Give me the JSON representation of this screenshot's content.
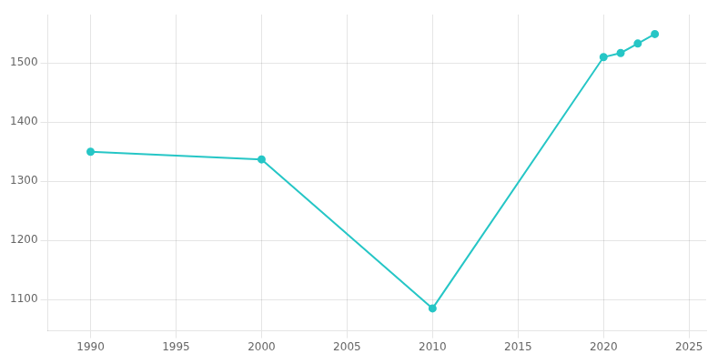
{
  "chart_data": {
    "type": "line",
    "x": [
      1990,
      2000,
      2010,
      2020,
      2021,
      2022,
      2023
    ],
    "values": [
      1350,
      1337,
      1085,
      1510,
      1517,
      1533,
      1549
    ],
    "color": "#26C6C6",
    "marker": "circle",
    "xlim": [
      1987.5,
      2026
    ],
    "ylim": [
      1047,
      1582
    ],
    "xticks": [
      1990,
      1995,
      2000,
      2005,
      2010,
      2015,
      2020,
      2025
    ],
    "yticks": [
      1100,
      1200,
      1300,
      1400,
      1500
    ],
    "grid": true
  }
}
